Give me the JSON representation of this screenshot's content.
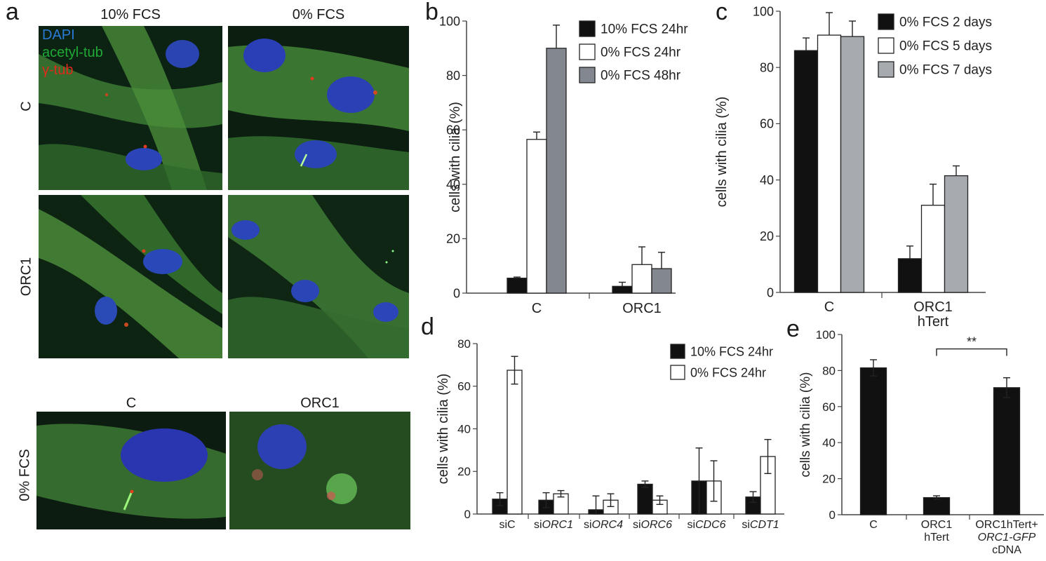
{
  "panel_a": {
    "letter": "a",
    "column_labels": [
      "10% FCS",
      "0% FCS"
    ],
    "row_labels": [
      "C",
      "ORC1"
    ],
    "stain_legend": [
      {
        "label": "DAPI",
        "color": "#2a7ad8"
      },
      {
        "label": "acetyl-tub",
        "color": "#1faa35"
      },
      {
        "label": "γ-tub",
        "color": "#e02a1a"
      }
    ],
    "bottom_column_labels": [
      "C",
      "ORC1"
    ],
    "bottom_row_label": "0% FCS"
  },
  "chart_data": [
    {
      "id": "b",
      "letter": "b",
      "type": "bar",
      "categories": [
        "C",
        "ORC1"
      ],
      "series": [
        {
          "name": "10% FCS 24hr",
          "color": "#111111",
          "values": [
            5.5,
            2.5
          ],
          "errors": [
            0.4,
            1.5
          ]
        },
        {
          "name": "0% FCS 24hr",
          "color": "#ffffff",
          "values": [
            56.5,
            10.5
          ],
          "errors": [
            2.7,
            6.5
          ]
        },
        {
          "name": "0% FCS 48hr",
          "color": "#838890",
          "values": [
            90,
            9
          ],
          "errors": [
            8.5,
            6
          ]
        }
      ],
      "ylabel": "cells with cilia (%)",
      "ylim": [
        0,
        100
      ],
      "yticks": [
        "0",
        "20",
        "40",
        "60",
        "80",
        "100"
      ],
      "legend": "top-right"
    },
    {
      "id": "c",
      "letter": "c",
      "type": "bar",
      "categories": [
        "C",
        "ORC1\nhTert"
      ],
      "series": [
        {
          "name": "0% FCS 2 days",
          "color": "#111111",
          "values": [
            86,
            12
          ],
          "errors": [
            4.5,
            4.5
          ]
        },
        {
          "name": "0% FCS 5 days",
          "color": "#ffffff",
          "values": [
            91.5,
            31
          ],
          "errors": [
            8,
            7.5
          ]
        },
        {
          "name": "0% FCS 7 days",
          "color": "#a7aaae",
          "values": [
            91,
            41.5
          ],
          "errors": [
            5.5,
            3.5
          ]
        }
      ],
      "ylabel": "cells with cilia (%)",
      "ylim": [
        0,
        100
      ],
      "yticks": [
        "0",
        "20",
        "40",
        "60",
        "80",
        "100"
      ],
      "legend": "top-right"
    },
    {
      "id": "d",
      "letter": "d",
      "type": "bar",
      "categories": [
        {
          "prefix": "si",
          "gene": "C",
          "italic": false
        },
        {
          "prefix": "si",
          "gene": "ORC1",
          "italic": true
        },
        {
          "prefix": "si",
          "gene": "ORC4",
          "italic": true
        },
        {
          "prefix": "si",
          "gene": "ORC6",
          "italic": true
        },
        {
          "prefix": "si",
          "gene": "CDC6",
          "italic": true
        },
        {
          "prefix": "si",
          "gene": "CDT1",
          "italic": true
        }
      ],
      "series": [
        {
          "name": "10% FCS 24hr",
          "color": "#111111",
          "values": [
            7,
            6.5,
            2,
            14,
            15.5,
            8
          ],
          "errors": [
            3,
            3.5,
            6.5,
            1.5,
            15.5,
            2.5
          ]
        },
        {
          "name": "0% FCS 24hr",
          "color": "#ffffff",
          "values": [
            67.5,
            9.5,
            6.5,
            6.5,
            15.5,
            27
          ],
          "errors": [
            6.5,
            1.5,
            3,
            2,
            9.5,
            8
          ]
        }
      ],
      "ylabel": "cells with cilia (%)",
      "ylim": [
        0,
        80
      ],
      "yticks": [
        "0",
        "20",
        "40",
        "60",
        "80"
      ],
      "legend": "top-right"
    },
    {
      "id": "e",
      "letter": "e",
      "type": "bar",
      "categories": [
        {
          "lines": [
            {
              "text": "C",
              "italic": false
            }
          ]
        },
        {
          "lines": [
            {
              "text": "ORC1",
              "italic": false
            },
            {
              "text": "hTert",
              "italic": false
            }
          ]
        },
        {
          "lines": [
            {
              "text": "ORC1hTert+",
              "italic": false
            },
            {
              "text": "ORC1-GFP",
              "italic": true
            },
            {
              "text": "cDNA",
              "italic": false
            }
          ]
        }
      ],
      "series": [
        {
          "name": "",
          "color": "#111111",
          "values": [
            81.5,
            9.5,
            70.5
          ],
          "errors": [
            4.5,
            1,
            5.5
          ]
        }
      ],
      "ylabel": "cells with cilia (%)",
      "ylim": [
        0,
        100
      ],
      "yticks": [
        "0",
        "20",
        "40",
        "60",
        "80",
        "100"
      ],
      "annotation": {
        "text": "**",
        "from_category": 1,
        "to_category": 2,
        "y": 92
      }
    }
  ]
}
